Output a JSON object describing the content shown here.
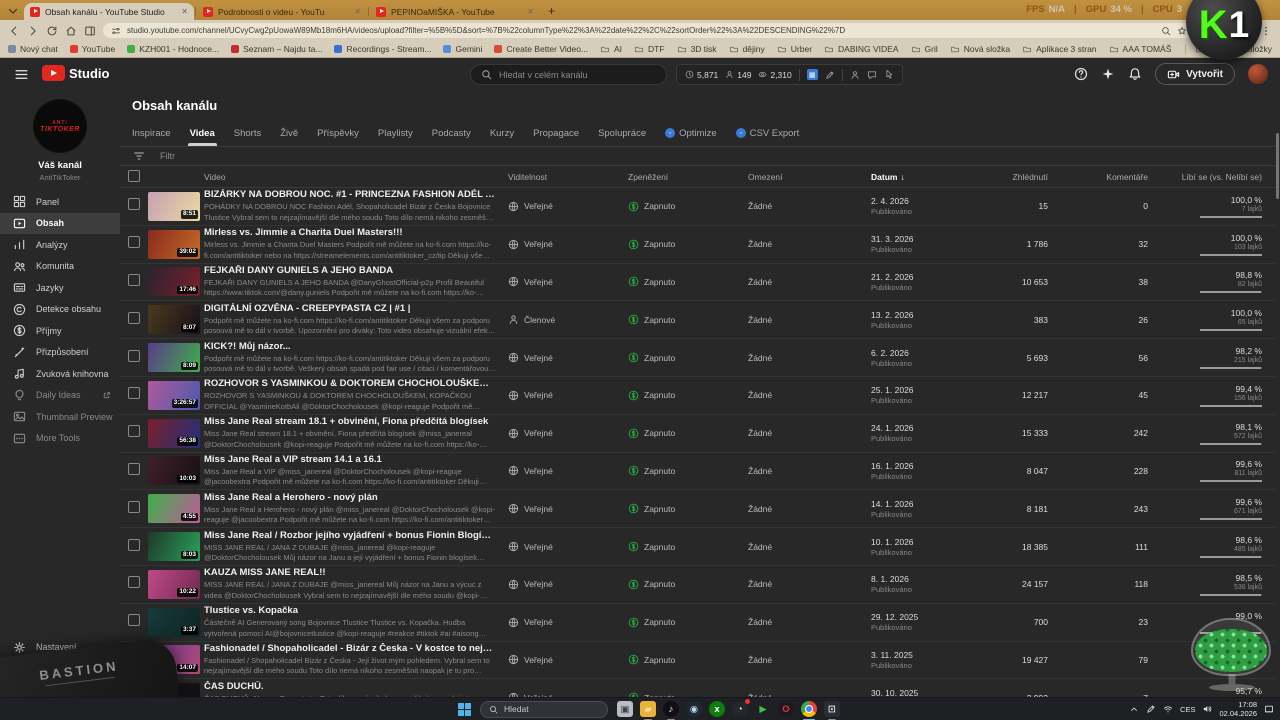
{
  "browser": {
    "tabs": [
      {
        "title": "Obsah kanálu - YouTube Studio",
        "active": true
      },
      {
        "title": "Podrobnosti o videu - YouTu",
        "active": false
      },
      {
        "title": "PEPINOaMIŠKA - YouTube",
        "active": false
      }
    ],
    "url": "studio.youtube.com/channel/UCvyCwg2pUowaW89Mb18m6HA/videos/upload?filter=%5B%5D&sort=%7B%22columnType%22%3A%22date%22%2C%22sortOrder%22%3A%22DESCENDING%22%7D",
    "ext_badge": "b",
    "bookmarks": [
      {
        "label": "Nový chat",
        "type": "page",
        "color": "#7a8ba6"
      },
      {
        "label": "YouTube",
        "type": "page",
        "color": "#e03c31"
      },
      {
        "label": "KZH001 - Hodnoce...",
        "type": "page",
        "color": "#3fae4a"
      },
      {
        "label": "Seznam – Najdu ta...",
        "type": "page",
        "color": "#c02f2f"
      },
      {
        "label": "Recordings - Stream...",
        "type": "page",
        "color": "#3a6fd8"
      },
      {
        "label": "Gemini",
        "type": "page",
        "color": "#5a8bd8"
      },
      {
        "label": "Create Better Video...",
        "type": "page",
        "color": "#d84a3a"
      },
      {
        "label": "AI",
        "type": "folder"
      },
      {
        "label": "DTF",
        "type": "folder"
      },
      {
        "label": "3D tisk",
        "type": "folder"
      },
      {
        "label": "dějiny",
        "type": "folder"
      },
      {
        "label": "Urber",
        "type": "folder"
      },
      {
        "label": "DABING VIDEA",
        "type": "folder"
      },
      {
        "label": "Gril",
        "type": "folder"
      },
      {
        "label": "Nová složka",
        "type": "folder"
      },
      {
        "label": "Aplikace 3 stran",
        "type": "folder"
      },
      {
        "label": "AAA TOMÁŠ",
        "type": "folder"
      }
    ],
    "all_bookmarks_label": "Všechny záložky",
    "perf_overlay": [
      {
        "label": "FPS",
        "value": "N/A"
      },
      {
        "label": "GPU",
        "value": "34 %"
      },
      {
        "label": "CPU",
        "value": "3"
      }
    ]
  },
  "overlays": {
    "k_badge_letter": "K",
    "k_badge_number": "1",
    "bastion_label": "BASTION"
  },
  "studio": {
    "brand": "Studio",
    "search_placeholder": "Hledat v celém kanálu",
    "ext_stats": [
      {
        "name": "watch-time",
        "icon": "clock",
        "value": "5,871"
      },
      {
        "name": "subscribers",
        "icon": "person",
        "value": "149"
      },
      {
        "name": "views",
        "icon": "eye",
        "value": "2,310"
      }
    ],
    "create_label": "Vytvořit",
    "sidebar": {
      "avatar_line1": "ANTI",
      "avatar_line2": "TIKTOKER",
      "channel_label": "Váš kanál",
      "channel_name": "AntiTikToker",
      "items": [
        {
          "label": "Panel",
          "icon": "dashboard"
        },
        {
          "label": "Obsah",
          "icon": "content",
          "active": true
        },
        {
          "label": "Analýzy",
          "icon": "analytics"
        },
        {
          "label": "Komunita",
          "icon": "community"
        },
        {
          "label": "Jazyky",
          "icon": "subtitles"
        },
        {
          "label": "Detekce obsahu",
          "icon": "copyright"
        },
        {
          "label": "Příjmy",
          "icon": "dollar"
        },
        {
          "label": "Přizpůsobení",
          "icon": "customize"
        },
        {
          "label": "Zvuková knihovna",
          "icon": "music"
        },
        {
          "label": "Daily Ideas",
          "icon": "bulb",
          "dim": true,
          "external": true
        },
        {
          "label": "Thumbnail Preview",
          "icon": "image",
          "dim": true
        },
        {
          "label": "More Tools",
          "icon": "tools",
          "dim": true
        }
      ],
      "settings_label": "Nastavení",
      "feedback_label": "Odeslat zpětnou vazbu"
    },
    "page": {
      "title": "Obsah kanálu",
      "tabs": [
        "Inspirace",
        "Videa",
        "Shorts",
        "Živě",
        "Příspěvky",
        "Playlisty",
        "Podcasty",
        "Kurzy",
        "Propagace",
        "Spolupráce"
      ],
      "active_tab": "Videa",
      "extra_tabs": [
        "Optimize",
        "CSV Export"
      ],
      "filter_label": "Filtr",
      "table": {
        "headers": {
          "video": "Video",
          "visibility": "Viditelnost",
          "monetization": "Zpeněžení",
          "restrictions": "Omezení",
          "date": "Datum",
          "views": "Zhlédnutí",
          "comments": "Komentáře",
          "likes": "Líbí se (vs. Nelíbí se)"
        },
        "sort_arrow": "↓",
        "rows": [
          {
            "title": "BIZÁRKY NA DOBROU NOC. #1 - PRINCEZNA FASHION ADÉL A BOJOVNICE TLUSTICE",
            "desc": "POHÁDKY NA DOBROU NOC Fashion Adél, Shopaholicadel Bizár z Česka Bojovnice Tlustice Vybral sem to nejzajímavější dle mého soudu Toto dílo nemá nikoho zesměšnit naopak je tu pro pobavení. Celé video je můj názor na danou osobu a c...",
            "duration": "8:51",
            "visibility": "Veřejné",
            "monetization": "Zapnuto",
            "restrictions": "Žádné",
            "date": "2. 4. 2026",
            "date_sub": "Publikováno",
            "views": "15",
            "comments": "0",
            "likes_pct": "100,0 %",
            "likes_count": "7 lajků",
            "pct": 100,
            "thumb": [
              "#c9a0b4",
              "#e8d9a0"
            ]
          },
          {
            "title": "Mirless vs. Jimmie a Charita Duel Masters!!!",
            "desc": "Mirless vs. Jimmie a Charita Duel Masters Podpořit mě můžete na ko-fi.com https://ko-fi.com/antitiktoker nebo na https://streamelements.com/antitiktoker_cz/tip Děkuji všem za podporu posouvá mě to dál v tvorbě. Veškerý obsah spad..",
            "duration": "39:02",
            "visibility": "Veřejné",
            "monetization": "Zapnuto",
            "restrictions": "Žádné",
            "date": "31. 3. 2026",
            "date_sub": "Publikováno",
            "views": "1 786",
            "comments": "32",
            "likes_pct": "100,0 %",
            "likes_count": "103 lajků",
            "pct": 100,
            "thumb": [
              "#8a2b1e",
              "#c46a28"
            ]
          },
          {
            "title": "FEJKAŘI DANY GUNIELS A JEHO BANDA",
            "desc": "FEJKAŘI DANY GUNIELS A JEHO BANDA @DanyGhostOfficial-p2p Profil Beautiful https://www.tiktok.com/@dany.guniels Podpořit mě můžete na ko-fi.com https://ko-fi.com/antitiktoker Děkuji všem za podporu posouvá mě to dál v tvorbě ...",
            "duration": "17:46",
            "visibility": "Veřejné",
            "monetization": "Zapnuto",
            "restrictions": "Žádné",
            "date": "21. 2. 2026",
            "date_sub": "Publikováno",
            "views": "10 653",
            "comments": "38",
            "likes_pct": "98,8 %",
            "likes_count": "82 lajků",
            "pct": 98.8,
            "thumb": [
              "#2a2330",
              "#7a1f2b"
            ]
          },
          {
            "title": "DIGITÁLNÍ OZVĚNA - CREEPYPASTA CZ | #1 |",
            "desc": "Podpořit mě můžete na ko-fi.com https://ko-fi.com/antitiktoker Děkuji všem za podporu posouvá mě to dál v tvorbě. Upozornění pro diváky: Toto video obsahuje vizuální efekty a blikající světla, která mohou vyvolat záchvaty u..",
            "duration": "8:07",
            "visibility": "Členové",
            "monetization": "Zapnuto",
            "restrictions": "Žádné",
            "date": "13. 2. 2026",
            "date_sub": "Publikováno",
            "views": "383",
            "comments": "26",
            "likes_pct": "100,0 %",
            "likes_count": "65 lajků",
            "pct": 100,
            "thumb": [
              "#4a3a1e",
              "#181018"
            ]
          },
          {
            "title": "KICK?! Můj názor...",
            "desc": "Podpořit mě můžete na ko-fi.com https://ko-fi.com/antitiktoker Děkuji všem za podporu posouvá mě to dál v tvorbě. Veškerý obsah spadá pod fair use / citaci / komentářovou tvorbu. Toto dílo nemá nikoho zesměšnit naopak má poukázat ...",
            "duration": "8:09",
            "visibility": "Veřejné",
            "monetization": "Zapnuto",
            "restrictions": "Žádné",
            "date": "6. 2. 2026",
            "date_sub": "Publikováno",
            "views": "5 693",
            "comments": "56",
            "likes_pct": "98,2 %",
            "likes_count": "215 lajků",
            "pct": 98.2,
            "thumb": [
              "#5a3c8a",
              "#3fae4a"
            ]
          },
          {
            "title": "ROZHOVOR S YASMINKOU & DOKTOREM CHOCHOLOUŠKEM A KOPAČKOU OFFICIAL",
            "desc": "ROZHOVOR S YASMINKOU & DOKTOREM CHOCHOLOUŠKEM, KOPAČKOU OFFICIAL @YasmineKotbAli @DoktorChocholousek @kopi-reaguje Podpořit mě můžete na ko-fi.com https://ko-fi.com/antitiktoker Děkuji všem za..",
            "duration": "3:26:57",
            "visibility": "Veřejné",
            "monetization": "Zapnuto",
            "restrictions": "Žádné",
            "date": "25. 1. 2026",
            "date_sub": "Publikováno",
            "views": "12 217",
            "comments": "45",
            "likes_pct": "99,4 %",
            "likes_count": "156 lajků",
            "pct": 99.4,
            "thumb": [
              "#b05a9a",
              "#4a5ab0"
            ]
          },
          {
            "title": "Miss Jane Real stream 18.1 + obvinění, Fiona předčítá blogísek",
            "desc": "Miss Jane Real stream 18.1 + obvinění, Fiona předčítá blogísek @miss_janereal @DoktorChocholousek @kopi-reaguje Podpořit mě můžete na ko-fi.com https://ko-fi.com/antitiktoker Děkuji všem za podporu posouvá mě to dál v tvorbě...",
            "duration": "56:38",
            "visibility": "Veřejné",
            "monetization": "Zapnuto",
            "restrictions": "Žádné",
            "date": "24. 1. 2026",
            "date_sub": "Publikováno",
            "views": "15 333",
            "comments": "242",
            "likes_pct": "98,1 %",
            "likes_count": "572 lajků",
            "pct": 98.1,
            "thumb": [
              "#7a1f2b",
              "#23307a"
            ]
          },
          {
            "title": "Miss Jane Real a VIP stream 14.1 a 16.1",
            "desc": "Miss Jane Real a VIP @miss_janereal @DoktorChocholousek @kopi-reaguje @jacoobextra Podpořit mě můžete na ko-fi.com https://ko-fi.com/antitiktoker Děkuji všem za podporu posouvá mě to dál v tvorbě. Veškerý obsah spadá pod fair u...",
            "duration": "10:03",
            "visibility": "Veřejné",
            "monetization": "Zapnuto",
            "restrictions": "Žádné",
            "date": "16. 1. 2026",
            "date_sub": "Publikováno",
            "views": "8 047",
            "comments": "228",
            "likes_pct": "99,6 %",
            "likes_count": "811 lajků",
            "pct": 99.6,
            "thumb": [
              "#402028",
              "#181018"
            ]
          },
          {
            "title": "Miss Jane Real a Herohero - nový plán",
            "desc": "Miss Jane Real a Herohero - nový plán @miss_janereal @DoktorChocholousek @kopi-reaguje @jacoobextra Podpořit mě můžete na ko-fi.com https://ko-fi.com/antitiktoker Děkuji všem za podporu posouvá mě to dál v tvorbě. Veškerý obsah...",
            "duration": "4:55",
            "visibility": "Veřejné",
            "monetization": "Zapnuto",
            "restrictions": "Žádné",
            "date": "14. 1. 2026",
            "date_sub": "Publikováno",
            "views": "8 181",
            "comments": "243",
            "likes_pct": "99,6 %",
            "likes_count": "671 lajků",
            "pct": 99.6,
            "thumb": [
              "#3fae4a",
              "#c05a9a"
            ]
          },
          {
            "title": "Miss Jane Real / Rozbor jejího vyjádření + bonus Fionin Blogísek",
            "desc": "MISS JANE REAL / JANA Z DUBAJE @miss_janereal @kopi-reaguje @DoktorChocholousek Můj názor na Janu a její vyjádření + bonus Fionin blogísek Odkaz na Fionin blog https://fionin-blog.webnode.sk/blog/ Toto dílo nemá nikoho...",
            "duration": "8:03",
            "visibility": "Veřejné",
            "monetization": "Zapnuto",
            "restrictions": "Žádné",
            "date": "10. 1. 2026",
            "date_sub": "Publikováno",
            "views": "18 385",
            "comments": "111",
            "likes_pct": "98,6 %",
            "likes_count": "485 lajků",
            "pct": 98.6,
            "thumb": [
              "#1f3a2a",
              "#2aa05a"
            ]
          },
          {
            "title": "KAUZA MISS JANE REAL!!",
            "desc": "MISS JANE REAL / JANA Z DUBAJE @miss_janereal Můj názor na Janu a výcuc z videa @DoktorChocholousek Vybral sem to nejzajímavější dle mého soudu @kopi-reaguje Odkaz na video Doktora Chocholouška https://youtu.be/1r3vQfgSlJQ?...",
            "duration": "10:22",
            "visibility": "Veřejné",
            "monetization": "Zapnuto",
            "restrictions": "Žádné",
            "date": "8. 1. 2026",
            "date_sub": "Publikováno",
            "views": "24 157",
            "comments": "118",
            "likes_pct": "98,5 %",
            "likes_count": "536 lajků",
            "pct": 98.5,
            "thumb": [
              "#c04a8a",
              "#702a50"
            ]
          },
          {
            "title": "Tlustice vs. Kopačka",
            "desc": "Částečně AI Generovaný song Bojovnice Tlustice Tlustice vs. Kopačka. Hudba vytvořená pomocí AI@bojovnicetlustice @kopi-reaguje #reakce #tiktok #ai #aisong #bizar #cz #czech #humor #joker #crayfish #dj #djviral#reakce #tiktok #ai...",
            "duration": "3:37",
            "visibility": "Veřejné",
            "monetization": "Zapnuto",
            "restrictions": "Žádné",
            "date": "29. 12. 2025",
            "date_sub": "Publikováno",
            "views": "700",
            "comments": "23",
            "likes_pct": "99,0 %",
            "likes_count": "",
            "pct": 99,
            "thumb": [
              "#173a3a",
              "#0f2525"
            ]
          },
          {
            "title": "Fashionadel / Shopaholicadel - Bizár z Česka - V kostce to nejzajímavější",
            "desc": "Fashionadel / Shopaholicadel Bizár z Česka - Její život mým pohledem. Vybral sem to nejzajímavější dle mého soudu Toto dílo nemá nikoho zesměšnit naopak je tu pro pobavení. Celé video je můj názor na danou osobu a co si myslím...",
            "duration": "14:07",
            "visibility": "Veřejné",
            "monetization": "Zapnuto",
            "restrictions": "Žádné",
            "date": "3. 11. 2025",
            "date_sub": "Publikováno",
            "views": "19 427",
            "comments": "79",
            "likes_pct": "",
            "likes_count": "",
            "pct": null,
            "thumb": [
              "#6a3a8a",
              "#b04a7a"
            ]
          },
          {
            "title": "ČAS DUCHŮ.",
            "desc": "ČAS DUCHŮ. AI song Prompty tu: Toto dílo nemá nikoho zesměšnit naopak je tu pro pobavení. Děkuji...",
            "duration": "",
            "visibility": "Veřejné",
            "monetization": "Zapnuto",
            "restrictions": "Žádné",
            "date": "30. 10. 2025",
            "date_sub": "Publikováno",
            "views": "2 992",
            "comments": "7",
            "likes_pct": "95,7 %",
            "likes_count": "",
            "pct": 95.7,
            "thumb": [
              "#201820",
              "#101010"
            ]
          }
        ]
      }
    }
  },
  "taskbar": {
    "search_placeholder": "Hledat",
    "apps": [
      {
        "name": "clipboard-app",
        "bg": "#b9bdc4",
        "fg": "#3f434b",
        "glyph": "▣",
        "shape": "square"
      },
      {
        "name": "file-explorer",
        "bg": "#e8b33a",
        "fg": "#f7e2a8",
        "glyph": "▰",
        "shape": "square",
        "open": true
      },
      {
        "name": "tiktok",
        "bg": "#101014",
        "fg": "#ffffff",
        "glyph": "♪",
        "shape": "circle",
        "open": true
      },
      {
        "name": "steam",
        "bg": "#1b2838",
        "fg": "#c7d5e0",
        "glyph": "◉",
        "shape": "circle"
      },
      {
        "name": "xbox",
        "bg": "#107c10",
        "fg": "#ffffff",
        "glyph": "x",
        "shape": "circle"
      },
      {
        "name": "obs",
        "bg": "#24262b",
        "fg": "#e0e0e6",
        "glyph": "◔",
        "shape": "circle",
        "dot": true
      },
      {
        "name": "media-player",
        "bg": "transparent",
        "fg": "#35c24a",
        "glyph": "▶",
        "shape": "plain"
      },
      {
        "name": "opera",
        "bg": "#1b1b1f",
        "fg": "#e6313b",
        "glyph": "O",
        "shape": "circle"
      },
      {
        "name": "chrome",
        "bg": "chrome",
        "fg": "",
        "glyph": "",
        "shape": "circle",
        "open": true,
        "active": true
      },
      {
        "name": "e-app",
        "bg": "#2b2d33",
        "fg": "#dfe3ea",
        "glyph": "⊡",
        "shape": "square",
        "open": true
      }
    ],
    "lang": "CES",
    "time": "17:08",
    "date": "02.04.2026"
  }
}
